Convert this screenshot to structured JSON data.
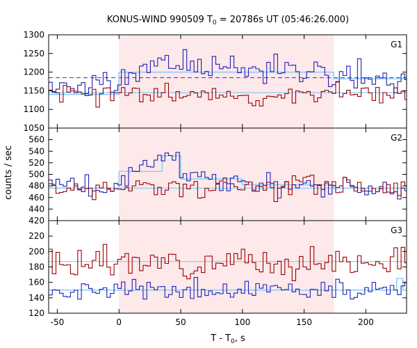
{
  "chart_data": {
    "type": "line",
    "title": "KONUS-WIND 990509 T",
    "title_sub": "0",
    "title_rest": " = 20786s UT (05:46:26.000)",
    "xlabel": "T - T",
    "xlabel_sub": "0",
    "xlabel_rest": ", s",
    "ylabel": "counts / sec",
    "xlim": [
      -57,
      233
    ],
    "x_ticks": [
      -50,
      0,
      50,
      100,
      150,
      200
    ],
    "x_tick_labels": [
      "-50",
      "0",
      "50",
      "100",
      "150",
      "200"
    ],
    "shaded_interval": [
      0,
      174
    ],
    "colors": {
      "shade": "#fde8ea",
      "series_red": "#990000",
      "series_blue": "#1f1fb4",
      "fit": "#87cefa",
      "dashed_blue": "#3333cc",
      "dashed_purple": "#b040c0"
    },
    "bin_width": 2.944,
    "panels": [
      {
        "label": "G1",
        "ylim": [
          1050,
          1300
        ],
        "y_ticks": [
          1050,
          1100,
          1150,
          1200,
          1250,
          1300
        ],
        "y_tick_labels": [
          "1050",
          "1100",
          "1150",
          "1200",
          "1250",
          "1300"
        ],
        "background": 1145,
        "dashed_level": 1185,
        "fit_blue": [
          [
            -57,
            1140
          ],
          [
            0,
            1140
          ],
          [
            0,
            1200
          ],
          [
            174,
            1200
          ],
          [
            174,
            1182
          ],
          [
            233,
            1182
          ]
        ],
        "fit_red": [
          [
            -57,
            1145
          ],
          [
            233,
            1145
          ]
        ],
        "series": [
          {
            "name": "blue",
            "base": 1162,
            "noise": 18,
            "seed": 11,
            "profile": [
              [
                -57,
                1160
              ],
              [
                0,
                1165
              ],
              [
                10,
                1200
              ],
              [
                40,
                1225
              ],
              [
                70,
                1215
              ],
              [
                120,
                1210
              ],
              [
                160,
                1205
              ],
              [
                174,
                1195
              ],
              [
                180,
                1180
              ],
              [
                200,
                1185
              ],
              [
                233,
                1185
              ]
            ]
          },
          {
            "name": "red",
            "base": 1140,
            "noise": 14,
            "seed": 23,
            "profile": [
              [
                -57,
                1140
              ],
              [
                233,
                1140
              ]
            ]
          }
        ]
      },
      {
        "label": "G2",
        "ylim": [
          420,
          580
        ],
        "y_ticks": [
          420,
          440,
          460,
          480,
          500,
          520,
          540,
          560
        ],
        "y_tick_labels": [
          "420",
          "440",
          "460",
          "480",
          "500",
          "520",
          "540",
          "560"
        ],
        "background": 476,
        "dashed_level": 476,
        "fit_blue": [
          [
            -57,
            476
          ],
          [
            0,
            476
          ],
          [
            0,
            505
          ],
          [
            35,
            505
          ],
          [
            35,
            532
          ],
          [
            50,
            532
          ],
          [
            50,
            492
          ],
          [
            100,
            492
          ],
          [
            100,
            482
          ],
          [
            174,
            482
          ],
          [
            174,
            476
          ],
          [
            233,
            476
          ]
        ],
        "fit_red": [
          [
            -57,
            476
          ],
          [
            233,
            476
          ]
        ],
        "series": [
          {
            "name": "blue",
            "base": 475,
            "noise": 10,
            "seed": 37,
            "profile": [
              [
                -57,
                474
              ],
              [
                0,
                475
              ],
              [
                5,
                500
              ],
              [
                25,
                515
              ],
              [
                38,
                545
              ],
              [
                48,
                525
              ],
              [
                55,
                500
              ],
              [
                80,
                488
              ],
              [
                120,
                484
              ],
              [
                174,
                478
              ],
              [
                233,
                476
              ]
            ]
          },
          {
            "name": "red",
            "base": 478,
            "noise": 10,
            "seed": 41,
            "profile": [
              [
                -57,
                474
              ],
              [
                233,
                480
              ]
            ]
          }
        ]
      },
      {
        "label": "G3",
        "ylim": [
          120,
          240
        ],
        "y_ticks": [
          120,
          140,
          160,
          180,
          200,
          220
        ],
        "y_tick_labels": [
          "120",
          "140",
          "160",
          "180",
          "200",
          "220"
        ],
        "background": 150,
        "dashed_level": null,
        "fit_blue": [
          [
            -57,
            150
          ],
          [
            225,
            150
          ],
          [
            225,
            165
          ],
          [
            230,
            165
          ],
          [
            230,
            150
          ],
          [
            233,
            150
          ]
        ],
        "fit_red": [
          [
            -57,
            187
          ],
          [
            233,
            187
          ]
        ],
        "series": [
          {
            "name": "blue",
            "base": 150,
            "noise": 7,
            "seed": 53,
            "profile": [
              [
                -57,
                150
              ],
              [
                233,
                150
              ]
            ]
          },
          {
            "name": "red",
            "base": 187,
            "noise": 9,
            "seed": 67,
            "profile": [
              [
                -57,
                186
              ],
              [
                233,
                186
              ]
            ]
          }
        ]
      }
    ]
  }
}
